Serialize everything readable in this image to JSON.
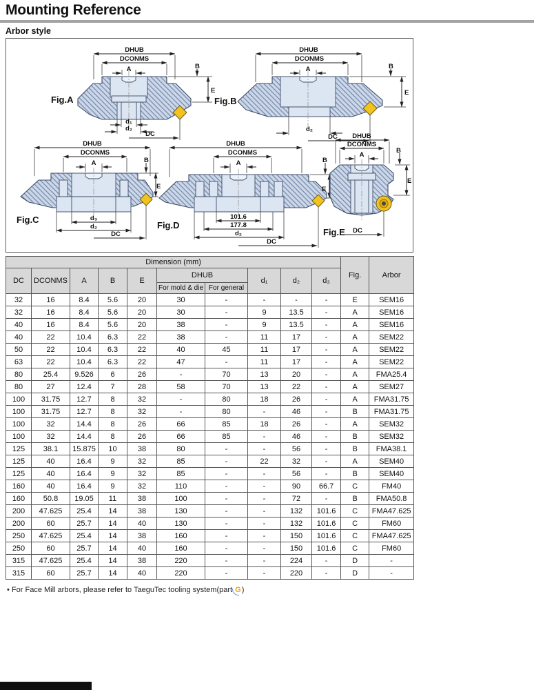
{
  "page": {
    "title": "Mounting Reference",
    "subtitle": "Arbor style"
  },
  "colors": {
    "insert_yellow": "#f2c31c",
    "body_fill": "#ccd7e8",
    "hatch_line": "#7186ab",
    "table_header_bg": "#d8d8d8",
    "title_rule": "#a3a3a3",
    "corner_tab": "#101010",
    "footnote_highlight": "#f0a30a"
  },
  "figures": {
    "a": {
      "label": "Fig.A",
      "dhub": "DHUB",
      "dconms": "DCONMS",
      "a": "A",
      "b": "B",
      "e": "E",
      "d1": "d₁",
      "d2": "d₂",
      "dc": "DC"
    },
    "b": {
      "label": "Fig.B",
      "dhub": "DHUB",
      "dconms": "DCONMS",
      "a": "A",
      "b": "B",
      "e": "E",
      "d2": "d₂",
      "dc": "DC"
    },
    "c": {
      "label": "Fig.C",
      "dhub": "DHUB",
      "dconms": "DCONMS",
      "a": "A",
      "b": "B",
      "e": "E",
      "d3": "d₃",
      "d2": "d₂",
      "dc": "DC"
    },
    "d": {
      "label": "Fig.D",
      "dhub": "DHUB",
      "dconms": "DCONMS",
      "a": "A",
      "b": "B",
      "e": "E",
      "dim_inner": "101.6",
      "dim_outer": "177.8",
      "d2": "d₂",
      "dc": "DC"
    },
    "e": {
      "label": "Fig.E",
      "dhub": "DHUB",
      "dconms": "DCONMS",
      "a": "A",
      "b": "B",
      "e": "E",
      "dc": "DC"
    }
  },
  "table": {
    "dimension_title": "Dimension (mm)",
    "headers": {
      "dc": "DC",
      "dconms": "DCONMS",
      "a": "A",
      "b": "B",
      "e": "E",
      "dhub": "DHUB",
      "dhub_mold": "For mold & die",
      "dhub_general": "For general",
      "d1": "d₁",
      "d2": "d₂",
      "d3": "d₃",
      "fig": "Fig.",
      "arbor": "Arbor"
    },
    "rows": [
      [
        "32",
        "16",
        "8.4",
        "5.6",
        "20",
        "30",
        "-",
        "-",
        "-",
        "-",
        "E",
        "SEM16"
      ],
      [
        "32",
        "16",
        "8.4",
        "5.6",
        "20",
        "30",
        "-",
        "9",
        "13.5",
        "-",
        "A",
        "SEM16"
      ],
      [
        "40",
        "16",
        "8.4",
        "5.6",
        "20",
        "38",
        "-",
        "9",
        "13.5",
        "-",
        "A",
        "SEM16"
      ],
      [
        "40",
        "22",
        "10.4",
        "6.3",
        "22",
        "38",
        "-",
        "11",
        "17",
        "-",
        "A",
        "SEM22"
      ],
      [
        "50",
        "22",
        "10.4",
        "6.3",
        "22",
        "40",
        "45",
        "11",
        "17",
        "-",
        "A",
        "SEM22"
      ],
      [
        "63",
        "22",
        "10.4",
        "6.3",
        "22",
        "47",
        "-",
        "11",
        "17",
        "-",
        "A",
        "SEM22"
      ],
      [
        "80",
        "25.4",
        "9.526",
        "6",
        "26",
        "-",
        "70",
        "13",
        "20",
        "-",
        "A",
        "FMA25.4"
      ],
      [
        "80",
        "27",
        "12.4",
        "7",
        "28",
        "58",
        "70",
        "13",
        "22",
        "-",
        "A",
        "SEM27"
      ],
      [
        "100",
        "31.75",
        "12.7",
        "8",
        "32",
        "-",
        "80",
        "18",
        "26",
        "-",
        "A",
        "FMA31.75"
      ],
      [
        "100",
        "31.75",
        "12.7",
        "8",
        "32",
        "-",
        "80",
        "-",
        "46",
        "-",
        "B",
        "FMA31.75"
      ],
      [
        "100",
        "32",
        "14.4",
        "8",
        "26",
        "66",
        "85",
        "18",
        "26",
        "-",
        "A",
        "SEM32"
      ],
      [
        "100",
        "32",
        "14.4",
        "8",
        "26",
        "66",
        "85",
        "-",
        "46",
        "-",
        "B",
        "SEM32"
      ],
      [
        "125",
        "38.1",
        "15.875",
        "10",
        "38",
        "80",
        "-",
        "-",
        "56",
        "-",
        "B",
        "FMA38.1"
      ],
      [
        "125",
        "40",
        "16.4",
        "9",
        "32",
        "85",
        "-",
        "22",
        "32",
        "-",
        "A",
        "SEM40"
      ],
      [
        "125",
        "40",
        "16.4",
        "9",
        "32",
        "85",
        "-",
        "-",
        "56",
        "-",
        "B",
        "SEM40"
      ],
      [
        "160",
        "40",
        "16.4",
        "9",
        "32",
        "110",
        "-",
        "-",
        "90",
        "66.7",
        "C",
        "FM40"
      ],
      [
        "160",
        "50.8",
        "19.05",
        "11",
        "38",
        "100",
        "-",
        "-",
        "72",
        "-",
        "B",
        "FMA50.8"
      ],
      [
        "200",
        "47.625",
        "25.4",
        "14",
        "38",
        "130",
        "-",
        "-",
        "132",
        "101.6",
        "C",
        "FMA47.625"
      ],
      [
        "200",
        "60",
        "25.7",
        "14",
        "40",
        "130",
        "-",
        "-",
        "132",
        "101.6",
        "C",
        "FM60"
      ],
      [
        "250",
        "47.625",
        "25.4",
        "14",
        "38",
        "160",
        "-",
        "-",
        "150",
        "101.6",
        "C",
        "FMA47.625"
      ],
      [
        "250",
        "60",
        "25.7",
        "14",
        "40",
        "160",
        "-",
        "-",
        "150",
        "101.6",
        "C",
        "FM60"
      ],
      [
        "315",
        "47.625",
        "25.4",
        "14",
        "38",
        "220",
        "-",
        "-",
        "224",
        "-",
        "D",
        "-"
      ],
      [
        "315",
        "60",
        "25.7",
        "14",
        "40",
        "220",
        "-",
        "-",
        "220",
        "-",
        "D",
        "-"
      ]
    ]
  },
  "footnote": {
    "bullet": "•",
    "text_before": "For Face Mill arbors, please refer to TaeguTec tooling system(part ",
    "highlight": "G",
    "text_after": ")"
  }
}
